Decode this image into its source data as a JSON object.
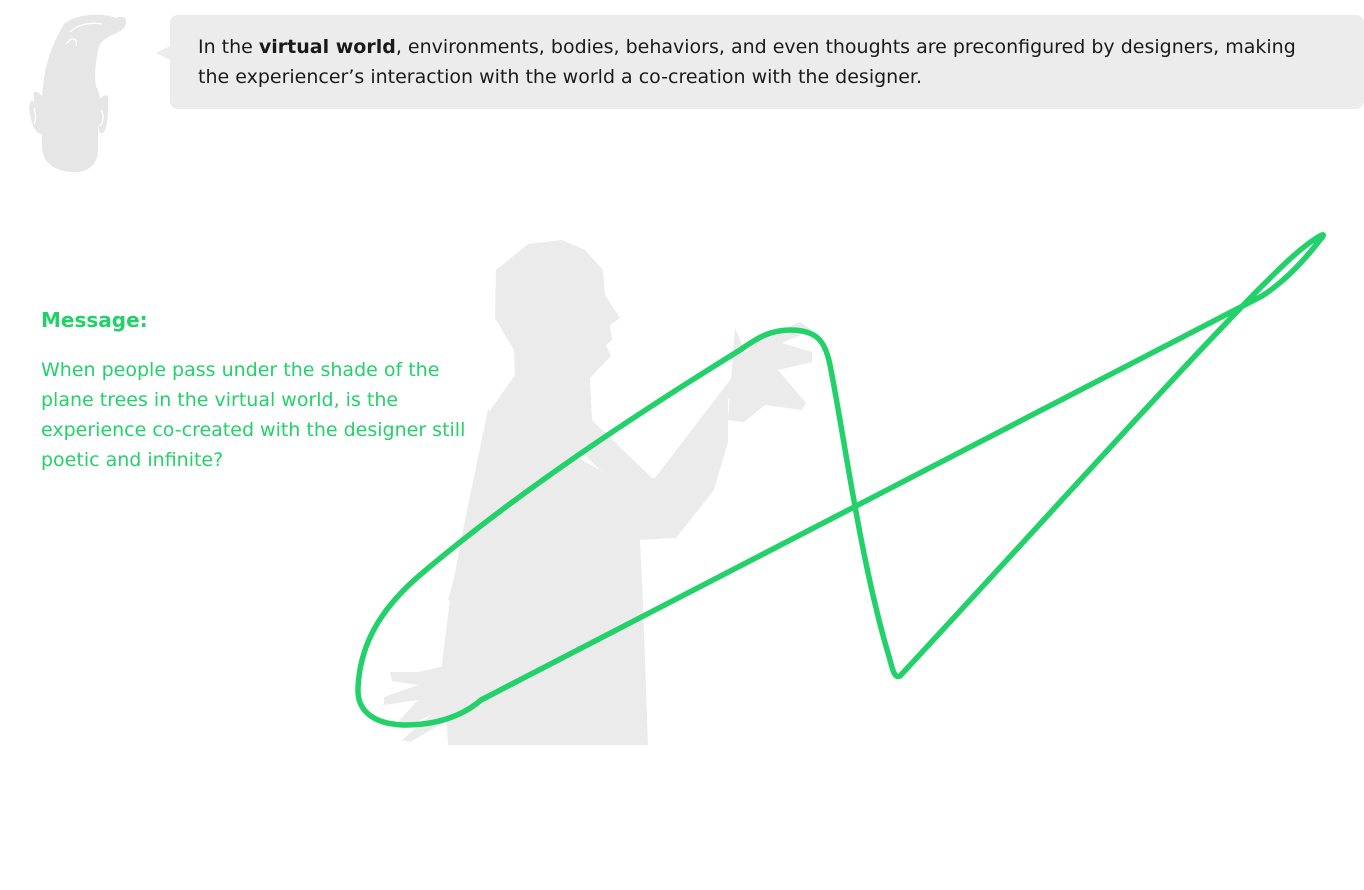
{
  "speech": {
    "pre": "In the ",
    "bold": "virtual world",
    "post": ", environments, bodies, behaviors, and even thoughts are preconfigured by designers, making the experiencer’s interaction with the world a co-creation with the designer."
  },
  "message": {
    "heading": "Message:",
    "body": "When people pass under the shade of the plane trees in the virtual world, is the experience co-created with the designer still poetic and infinite?"
  },
  "colors": {
    "accent": "#23d16a",
    "bubble": "#ececec",
    "silhouette": "#ebebeb",
    "text": "#1a1a1a"
  },
  "icons": {
    "avatar": "character-avatar-icon",
    "figure": "person-silhouette",
    "scribble": "green-loop-scribble"
  }
}
